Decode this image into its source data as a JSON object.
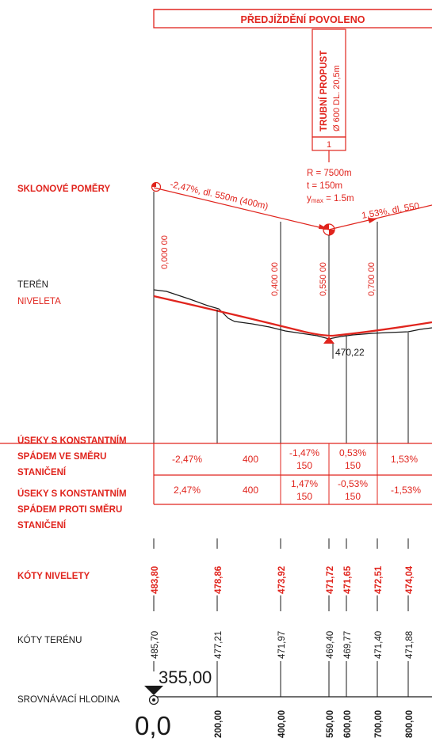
{
  "header": {
    "overtaking": "PŘEDJÍŽDĚNÍ POVOLENO"
  },
  "culvert": {
    "line1": "TRUBNÍ PROPUST",
    "line2": "Ø 600  DL. 20,5m",
    "number": "1"
  },
  "curve": {
    "r": "R = 7500m",
    "t": "t = 150m",
    "ymax": "y",
    "ymax_sub": "max",
    "ymax_val": " = 1.5m"
  },
  "grades": {
    "left": "-2,47%, dl. 550m (400m)",
    "right": "1,53%, dl. 550"
  },
  "low_point": "470,22",
  "labels": {
    "sklonove": "SKLONOVÉ POMĚRY",
    "teren": "TERÉN",
    "niveleta": "NIVELETA",
    "useky_ve": [
      "ÚSEKY S KONSTANTNÍM",
      "SPÁDEM VE SMĚRU",
      "STANIČENÍ"
    ],
    "useky_proti": [
      "ÚSEKY S KONSTANTNÍM",
      "SPÁDEM PROTI SMĚRU",
      "STANIČENÍ"
    ],
    "koty_nivelety": "KÓTY NIVELETY",
    "koty_terenu": "KÓTY TERÉNU",
    "hladina": "SROVNÁVACÍ HLODINA"
  },
  "stations_vertical": [
    "0,000 00",
    "0,400 00",
    "0,550 00",
    "0,700 00"
  ],
  "row_ve": [
    {
      "text": [
        "-2,47%"
      ]
    },
    {
      "text": [
        "400"
      ]
    },
    {
      "text": [
        "-1,47%",
        "150"
      ]
    },
    {
      "text": [
        "0,53%",
        "150"
      ]
    },
    {
      "text": [
        "1,53%"
      ]
    }
  ],
  "row_proti": [
    {
      "text": [
        "2,47%"
      ]
    },
    {
      "text": [
        "400"
      ]
    },
    {
      "text": [
        "1,47%",
        "150"
      ]
    },
    {
      "text": [
        "-0,53%",
        "150"
      ]
    },
    {
      "text": [
        "-1,53%"
      ]
    }
  ],
  "koty_nivelety": [
    "483,80",
    "478,86",
    "473,92",
    "471,72",
    "471,65",
    "472,51",
    "474,04"
  ],
  "koty_terenu": [
    "485,70",
    "477,21",
    "471,97",
    "469,40",
    "469,77",
    "471,40",
    "471,88"
  ],
  "datum": "355,00",
  "origin": "0,0",
  "chainage": [
    "200,00",
    "400,00",
    "550,00",
    "600,00",
    "700,00",
    "800,00"
  ],
  "colors": {
    "red": "#e0241d",
    "black": "#1a1a1a"
  }
}
